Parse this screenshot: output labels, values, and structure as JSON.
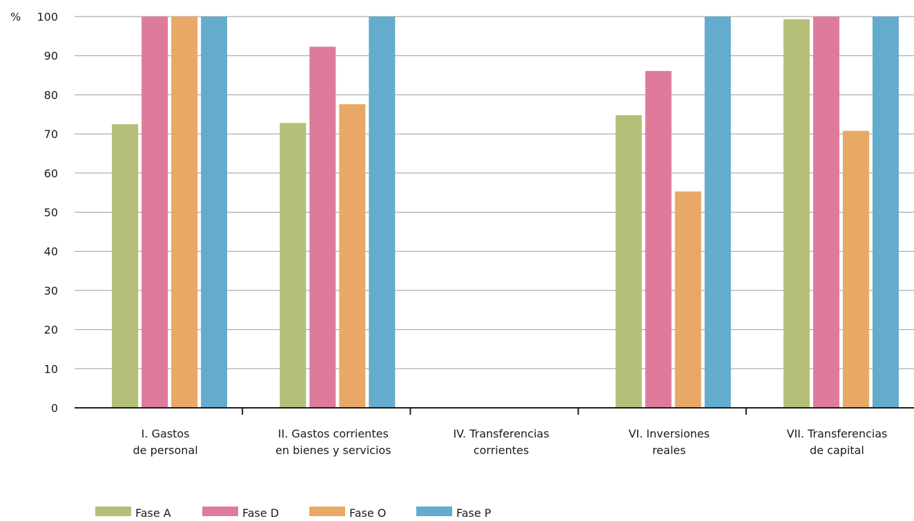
{
  "chart_data": {
    "type": "bar",
    "y_unit": "%",
    "categories": [
      [
        "I.   Gastos",
        "de personal"
      ],
      [
        "II.  Gastos corrientes",
        "en bienes y servicios"
      ],
      [
        "IV. Transferencias",
        "corrientes"
      ],
      [
        "VI. Inversiones",
        "reales"
      ],
      [
        "VII. Transferencias",
        "de capital"
      ]
    ],
    "series": [
      {
        "name": "Fase A",
        "color": "#b5bf78",
        "values": [
          72.5,
          72.8,
          null,
          74.8,
          99.3
        ]
      },
      {
        "name": "Fase D",
        "color": "#df7b9a",
        "values": [
          100,
          92.3,
          null,
          86.1,
          100
        ]
      },
      {
        "name": "Fase O",
        "color": "#e8a966",
        "values": [
          100,
          77.6,
          null,
          55.3,
          70.8
        ]
      },
      {
        "name": "Fase P",
        "color": "#63accd",
        "values": [
          100,
          100,
          null,
          100,
          100
        ]
      }
    ],
    "ylim": [
      0,
      100
    ],
    "yticks": [
      0,
      10,
      20,
      30,
      40,
      50,
      60,
      70,
      80,
      90,
      100
    ],
    "grid": true,
    "legend_position": "bottom-left"
  }
}
